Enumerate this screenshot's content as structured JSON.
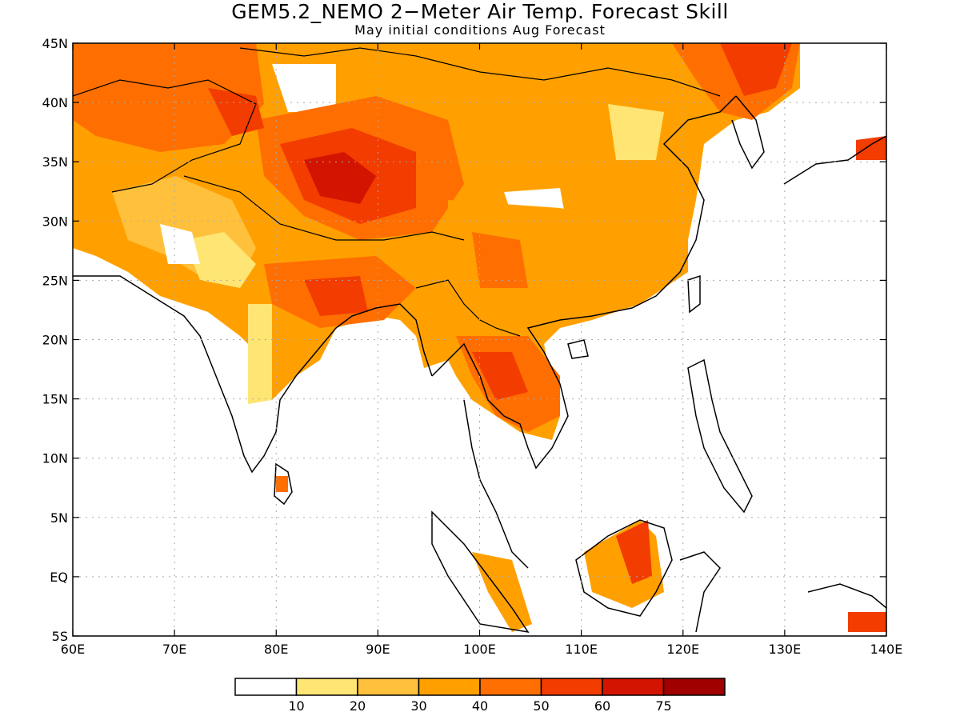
{
  "title": "GEM5.2_NEMO 2−Meter Air Temp. Forecast Skill",
  "subtitle": "May initial conditions  Aug Forecast",
  "map": {
    "lon_range": [
      60,
      140
    ],
    "lat_range": [
      -5,
      45
    ],
    "lon_ticks": [
      {
        "value": 60,
        "label": "60E"
      },
      {
        "value": 70,
        "label": "70E"
      },
      {
        "value": 80,
        "label": "80E"
      },
      {
        "value": 90,
        "label": "90E"
      },
      {
        "value": 100,
        "label": "100E"
      },
      {
        "value": 110,
        "label": "110E"
      },
      {
        "value": 120,
        "label": "120E"
      },
      {
        "value": 130,
        "label": "130E"
      },
      {
        "value": 140,
        "label": "140E"
      }
    ],
    "lat_ticks": [
      {
        "value": 45,
        "label": "45N"
      },
      {
        "value": 40,
        "label": "40N"
      },
      {
        "value": 35,
        "label": "35N"
      },
      {
        "value": 30,
        "label": "30N"
      },
      {
        "value": 25,
        "label": "25N"
      },
      {
        "value": 20,
        "label": "20N"
      },
      {
        "value": 15,
        "label": "15N"
      },
      {
        "value": 10,
        "label": "10N"
      },
      {
        "value": 5,
        "label": "5N"
      },
      {
        "value": 0,
        "label": "EQ"
      },
      {
        "value": -5,
        "label": "5S"
      }
    ]
  },
  "colorbar": {
    "colors": [
      "#ffffff",
      "#ffe574",
      "#ffc03c",
      "#ffa000",
      "#ff6e00",
      "#f23c00",
      "#d21400",
      "#a00000"
    ],
    "labels": [
      "10",
      "20",
      "30",
      "40",
      "50",
      "60",
      "75"
    ]
  }
}
